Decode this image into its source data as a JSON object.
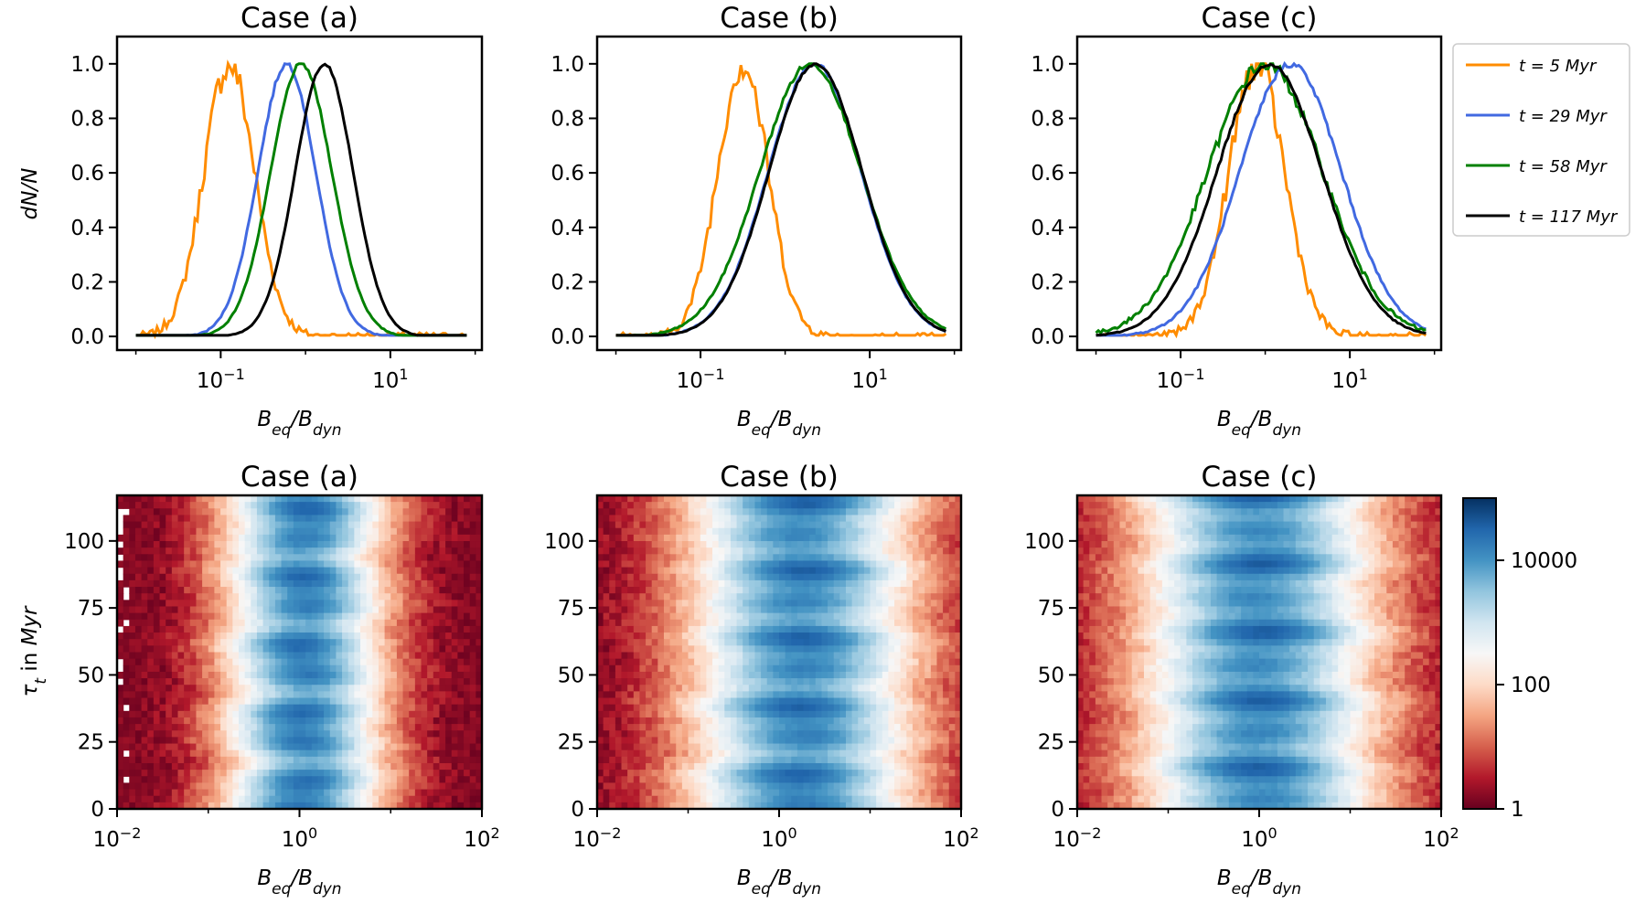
{
  "chart_data": [
    {
      "type": "line",
      "panel": "top-a",
      "title": "Case (a)",
      "xlabel": "B_eq/B_dyn",
      "ylabel": "dN/N",
      "xscale": "log",
      "xlim": [
        0.006,
        120
      ],
      "ylim": [
        -0.05,
        1.1
      ],
      "xticks": [
        {
          "v": 0.1,
          "base": "10",
          "exp": "−1"
        },
        {
          "v": 10,
          "base": "10",
          "exp": "1"
        }
      ],
      "yticks": [
        "0.0",
        "0.2",
        "0.4",
        "0.6",
        "0.8",
        "1.0"
      ],
      "series": [
        {
          "name": "t = 5 Myr",
          "color": "#ff8c00",
          "mu": -0.9,
          "sigma": 0.3,
          "noise": 0.05
        },
        {
          "name": "t = 29 Myr",
          "color": "#4169e1",
          "mu": -0.22,
          "sigma": 0.34,
          "noise": 0.008
        },
        {
          "name": "t = 58 Myr",
          "color": "#008000",
          "mu": -0.05,
          "sigma": 0.36,
          "noise": 0.006
        },
        {
          "name": "t = 117 Myr",
          "color": "#000000",
          "mu": 0.22,
          "sigma": 0.34,
          "noise": 0.004
        }
      ]
    },
    {
      "type": "line",
      "panel": "top-b",
      "title": "Case (b)",
      "xlabel": "B_eq/B_dyn",
      "ylabel": "",
      "xscale": "log",
      "xlim": [
        0.006,
        120
      ],
      "ylim": [
        -0.05,
        1.1
      ],
      "xticks": [
        {
          "v": 0.1,
          "base": "10",
          "exp": "−1"
        },
        {
          "v": 10,
          "base": "10",
          "exp": "1"
        }
      ],
      "yticks": [
        "0.0",
        "0.2",
        "0.4",
        "0.6",
        "0.8",
        "1.0"
      ],
      "series": [
        {
          "name": "t = 5 Myr",
          "color": "#ff8c00",
          "mu": -0.5,
          "sigma": 0.3,
          "noise": 0.05
        },
        {
          "name": "t = 29 Myr",
          "color": "#4169e1",
          "mu": 0.35,
          "sigma": 0.55,
          "noise": 0.006
        },
        {
          "name": "t = 58 Myr",
          "color": "#008000",
          "mu": 0.3,
          "sigma": 0.6,
          "noise": 0.008
        },
        {
          "name": "t = 117 Myr",
          "color": "#000000",
          "mu": 0.36,
          "sigma": 0.55,
          "noise": 0.004
        }
      ]
    },
    {
      "type": "line",
      "panel": "top-c",
      "title": "Case (c)",
      "xlabel": "B_eq/B_dyn",
      "ylabel": "",
      "xscale": "log",
      "xlim": [
        0.006,
        120
      ],
      "ylim": [
        -0.05,
        1.1
      ],
      "xticks": [
        {
          "v": 0.1,
          "base": "10",
          "exp": "−1"
        },
        {
          "v": 10,
          "base": "10",
          "exp": "1"
        }
      ],
      "yticks": [
        "0.0",
        "0.2",
        "0.4",
        "0.6",
        "0.8",
        "1.0"
      ],
      "series": [
        {
          "name": "t = 5 Myr",
          "color": "#ff8c00",
          "mu": -0.1,
          "sigma": 0.33,
          "noise": 0.05
        },
        {
          "name": "t = 29 Myr",
          "color": "#4169e1",
          "mu": 0.3,
          "sigma": 0.6,
          "noise": 0.01
        },
        {
          "name": "t = 58 Myr",
          "color": "#008000",
          "mu": 0.0,
          "sigma": 0.68,
          "noise": 0.02
        },
        {
          "name": "t = 117 Myr",
          "color": "#000000",
          "mu": 0.05,
          "sigma": 0.62,
          "noise": 0.006
        }
      ]
    },
    {
      "type": "heatmap",
      "panel": "bottom-a",
      "title": "Case (a)",
      "xlabel": "B_eq/B_dyn",
      "ylabel": "τ_t in Myr",
      "xscale": "log",
      "xlim": [
        0.01,
        100
      ],
      "ylim": [
        0,
        117
      ],
      "xticks": [
        {
          "v": 0.01,
          "base": "10",
          "exp": "−2"
        },
        {
          "v": 1,
          "base": "10",
          "exp": "0"
        },
        {
          "v": 100,
          "base": "10",
          "exp": "2"
        }
      ],
      "yticks": [
        0,
        25,
        50,
        75,
        100
      ],
      "center": 0.05,
      "width": 0.6
    },
    {
      "type": "heatmap",
      "panel": "bottom-b",
      "title": "Case (b)",
      "xlabel": "B_eq/B_dyn",
      "ylabel": "",
      "xscale": "log",
      "xlim": [
        0.01,
        100
      ],
      "ylim": [
        0,
        117
      ],
      "xticks": [
        {
          "v": 0.01,
          "base": "10",
          "exp": "−2"
        },
        {
          "v": 1,
          "base": "10",
          "exp": "0"
        },
        {
          "v": 100,
          "base": "10",
          "exp": "2"
        }
      ],
      "yticks": [
        0,
        25,
        50,
        75,
        100
      ],
      "center": 0.25,
      "width": 0.85
    },
    {
      "type": "heatmap",
      "panel": "bottom-c",
      "title": "Case (c)",
      "xlabel": "B_eq/B_dyn",
      "ylabel": "",
      "xscale": "log",
      "xlim": [
        0.01,
        100
      ],
      "ylim": [
        0,
        117
      ],
      "xticks": [
        {
          "v": 0.01,
          "base": "10",
          "exp": "−2"
        },
        {
          "v": 1,
          "base": "10",
          "exp": "0"
        },
        {
          "v": 100,
          "base": "10",
          "exp": "2"
        }
      ],
      "yticks": [
        0,
        25,
        50,
        75,
        100
      ],
      "center": 0.0,
      "width": 0.9
    }
  ],
  "legend": {
    "location": "right of top row",
    "items": [
      {
        "pre": "t = 5 ",
        "unit": "Myr",
        "color": "#ff8c00"
      },
      {
        "pre": "t = 29 ",
        "unit": "Myr",
        "color": "#4169e1"
      },
      {
        "pre": "t = 58 ",
        "unit": "Myr",
        "color": "#008000"
      },
      {
        "pre": "t = 117 ",
        "unit": "Myr",
        "color": "#000000"
      }
    ]
  },
  "colorbar": {
    "scale": "log",
    "range": [
      1,
      100000
    ],
    "ticks": [
      {
        "v": 1,
        "label": "1"
      },
      {
        "v": 100,
        "label": "100"
      },
      {
        "v": 10000,
        "label": "10000"
      }
    ],
    "colors": [
      "#67001f",
      "#b2182b",
      "#d6604d",
      "#f4a582",
      "#fddbc7",
      "#f7f7f7",
      "#d1e5f0",
      "#92c5de",
      "#4393c3",
      "#2166ac",
      "#053061"
    ]
  },
  "labels": {
    "x_main": "B",
    "x_sub1": "eq",
    "x_slash": "/B",
    "x_sub2": "dyn",
    "y_top": "dN/N",
    "y_bot_tau": "τ",
    "y_bot_sub": "t",
    "y_bot_rest": " in ",
    "y_bot_unit": "Myr"
  }
}
